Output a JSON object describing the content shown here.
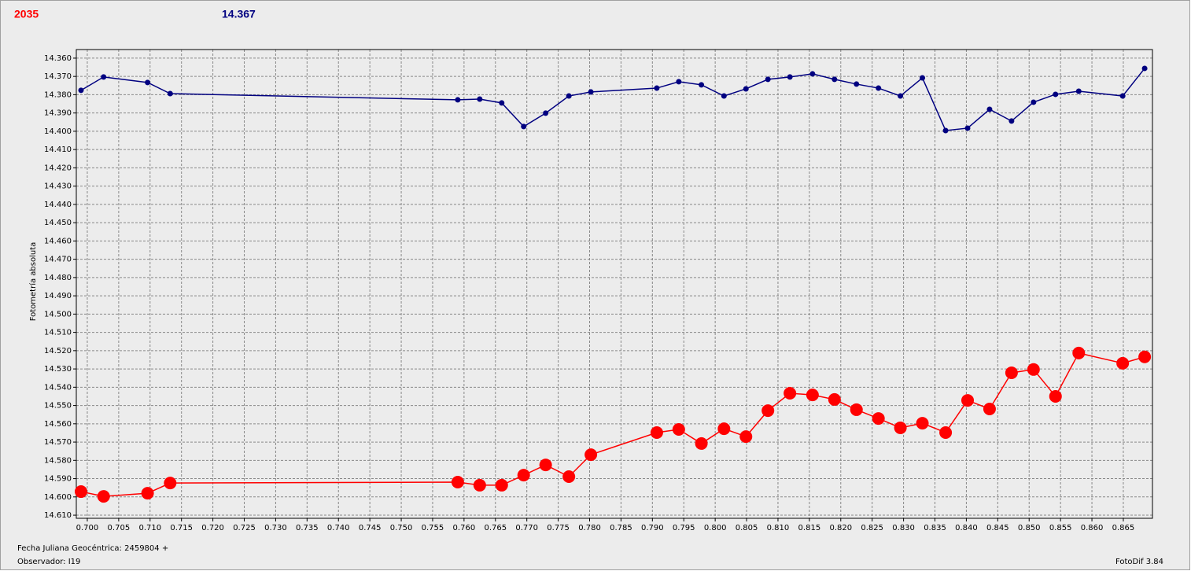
{
  "chart_data": {
    "type": "line",
    "y_label": "Fotometría absoluta",
    "x_label": "Fecha Juliana Geocéntrica: 2459804 +",
    "observer": "Observador: I19",
    "software": "FotoDif 3.84",
    "y_inverted": true,
    "grid": true,
    "x": [
      0.699,
      0.7026,
      0.7096,
      0.7132,
      0.759,
      0.7625,
      0.766,
      0.7695,
      0.773,
      0.7767,
      0.7802,
      0.7907,
      0.7942,
      0.7978,
      0.8014,
      0.8049,
      0.8084,
      0.8119,
      0.8155,
      0.819,
      0.8225,
      0.826,
      0.8295,
      0.833,
      0.8367,
      0.8402,
      0.8437,
      0.8472,
      0.8507,
      0.8542,
      0.8579,
      0.8649,
      0.8684
    ],
    "series": [
      {
        "name": "2035",
        "color": "#ff0000",
        "marker": "circle",
        "values": [
          14.5971,
          14.5997,
          14.598,
          14.5924,
          14.5919,
          14.5936,
          14.5936,
          14.5881,
          14.5825,
          14.5889,
          14.5769,
          14.5648,
          14.5631,
          14.5708,
          14.5627,
          14.567,
          14.5528,
          14.5433,
          14.5442,
          14.5467,
          14.5523,
          14.5571,
          14.5622,
          14.5597,
          14.5648,
          14.5472,
          14.5519,
          14.5321,
          14.5303,
          14.545,
          14.5213,
          14.5269,
          14.5234
        ]
      },
      {
        "name": "14.367",
        "color": "#000080",
        "marker": "dot",
        "values": [
          14.3776,
          14.3703,
          14.3733,
          14.3794,
          14.3828,
          14.3824,
          14.3845,
          14.3974,
          14.3901,
          14.3807,
          14.3785,
          14.3764,
          14.3729,
          14.3746,
          14.3807,
          14.3768,
          14.3716,
          14.3703,
          14.3686,
          14.3716,
          14.3742,
          14.3764,
          14.3807,
          14.3708,
          14.3996,
          14.3983,
          14.388,
          14.3944,
          14.3841,
          14.3798,
          14.3781,
          14.3807,
          14.3656
        ]
      }
    ],
    "xlim": [
      0.69825,
      0.86964
    ],
    "ylim": [
      14.3553,
      14.6117
    ],
    "xticks": [
      {
        "value": 0.7,
        "label": "0.700"
      },
      {
        "value": 0.705,
        "label": "0.705"
      },
      {
        "value": 0.71,
        "label": "0.710"
      },
      {
        "value": 0.715,
        "label": "0.715"
      },
      {
        "value": 0.72,
        "label": "0.720"
      },
      {
        "value": 0.725,
        "label": "0.725"
      },
      {
        "value": 0.73,
        "label": "0.730"
      },
      {
        "value": 0.735,
        "label": "0.735"
      },
      {
        "value": 0.74,
        "label": "0.740"
      },
      {
        "value": 0.745,
        "label": "0.745"
      },
      {
        "value": 0.75,
        "label": "0.750"
      },
      {
        "value": 0.755,
        "label": "0.755"
      },
      {
        "value": 0.76,
        "label": "0.760"
      },
      {
        "value": 0.765,
        "label": "0.765"
      },
      {
        "value": 0.77,
        "label": "0.770"
      },
      {
        "value": 0.775,
        "label": "0.775"
      },
      {
        "value": 0.78,
        "label": "0.780"
      },
      {
        "value": 0.785,
        "label": "0.785"
      },
      {
        "value": 0.79,
        "label": "0.790"
      },
      {
        "value": 0.795,
        "label": "0.795"
      },
      {
        "value": 0.8,
        "label": "0.800"
      },
      {
        "value": 0.805,
        "label": "0.805"
      },
      {
        "value": 0.81,
        "label": "0.810"
      },
      {
        "value": 0.815,
        "label": "0.815"
      },
      {
        "value": 0.82,
        "label": "0.820"
      },
      {
        "value": 0.825,
        "label": "0.825"
      },
      {
        "value": 0.83,
        "label": "0.830"
      },
      {
        "value": 0.835,
        "label": "0.835"
      },
      {
        "value": 0.84,
        "label": "0.840"
      },
      {
        "value": 0.845,
        "label": "0.845"
      },
      {
        "value": 0.85,
        "label": "0.850"
      },
      {
        "value": 0.855,
        "label": "0.855"
      },
      {
        "value": 0.86,
        "label": "0.860"
      },
      {
        "value": 0.865,
        "label": "0.865"
      }
    ],
    "yticks": [
      {
        "value": 14.36,
        "label": "14.360"
      },
      {
        "value": 14.37,
        "label": "14.370"
      },
      {
        "value": 14.38,
        "label": "14.380"
      },
      {
        "value": 14.39,
        "label": "14.390"
      },
      {
        "value": 14.4,
        "label": "14.400"
      },
      {
        "value": 14.41,
        "label": "14.410"
      },
      {
        "value": 14.42,
        "label": "14.420"
      },
      {
        "value": 14.43,
        "label": "14.430"
      },
      {
        "value": 14.44,
        "label": "14.440"
      },
      {
        "value": 14.45,
        "label": "14.450"
      },
      {
        "value": 14.46,
        "label": "14.460"
      },
      {
        "value": 14.47,
        "label": "14.470"
      },
      {
        "value": 14.48,
        "label": "14.480"
      },
      {
        "value": 14.49,
        "label": "14.490"
      },
      {
        "value": 14.5,
        "label": "14.500"
      },
      {
        "value": 14.51,
        "label": "14.510"
      },
      {
        "value": 14.52,
        "label": "14.520"
      },
      {
        "value": 14.53,
        "label": "14.530"
      },
      {
        "value": 14.54,
        "label": "14.540"
      },
      {
        "value": 14.55,
        "label": "14.550"
      },
      {
        "value": 14.56,
        "label": "14.560"
      },
      {
        "value": 14.57,
        "label": "14.570"
      },
      {
        "value": 14.58,
        "label": "14.580"
      },
      {
        "value": 14.59,
        "label": "14.590"
      },
      {
        "value": 14.6,
        "label": "14.600"
      },
      {
        "value": 14.61,
        "label": "14.610"
      }
    ]
  }
}
